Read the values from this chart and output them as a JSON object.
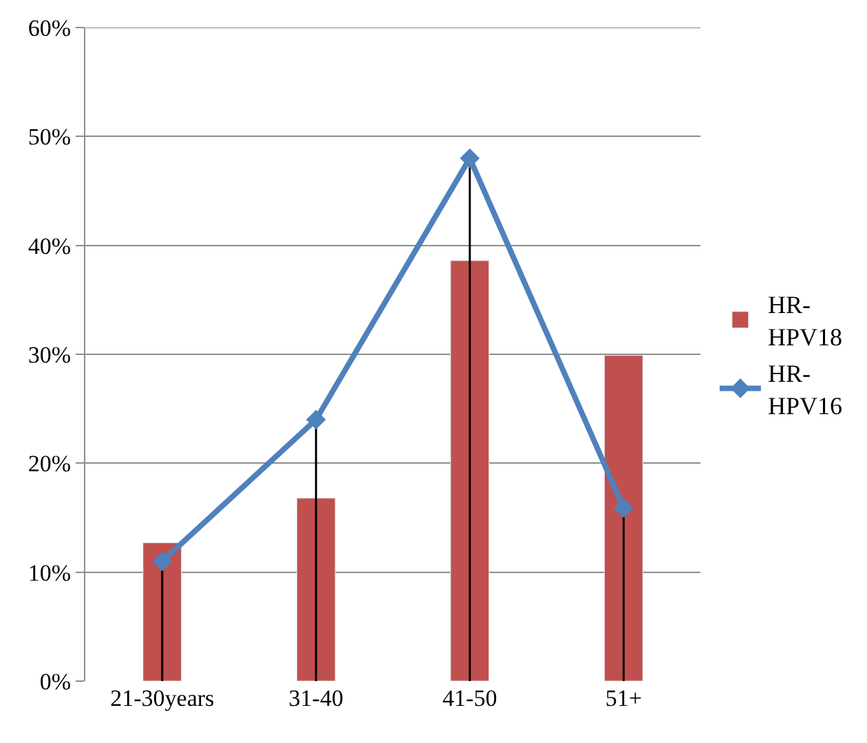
{
  "chart_data": {
    "type": "bar",
    "categories": [
      "21-30years",
      "31-40",
      "41-50",
      "51+"
    ],
    "series": [
      {
        "name": "HR-HPV18",
        "color": "#c0504d",
        "values": [
          12.7,
          16.8,
          38.6,
          29.9
        ]
      },
      {
        "name": "HR-HPV16",
        "type": "line",
        "color": "#4f81bd",
        "marker": "diamond",
        "values": [
          11.0,
          24.0,
          48.0,
          15.9
        ],
        "errors": [
          [
            0,
            11.0
          ],
          [
            0,
            24.0
          ],
          [
            0,
            48.0
          ],
          [
            0,
            15.9
          ]
        ]
      }
    ],
    "ylim": [
      0,
      60
    ],
    "yticks": [
      {
        "value": 0,
        "label": "0%"
      },
      {
        "value": 10,
        "label": "10%"
      },
      {
        "value": 20,
        "label": "20%"
      },
      {
        "value": 30,
        "label": "30%"
      },
      {
        "value": 40,
        "label": "40%"
      },
      {
        "value": 50,
        "label": "50%"
      },
      {
        "value": 60,
        "label": "60%"
      }
    ],
    "grid": "y",
    "legend": "right"
  }
}
